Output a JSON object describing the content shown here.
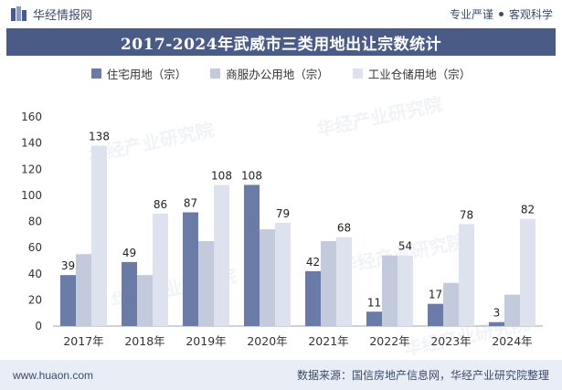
{
  "header": {
    "brand": "华经情报网",
    "slogan_left": "专业严谨",
    "slogan_right": "客观科学"
  },
  "watermark": "华经产业研究院",
  "colors": {
    "series1": "#6a7ba8",
    "series2": "#c3cadc",
    "series3": "#dde2ee",
    "title_bg": "#4a5b86",
    "footer_bg": "#e9edf5"
  },
  "footer": {
    "url": "www.huaon.com",
    "source": "数据来源：国信房地产信息网，华经产业研究院整理"
  },
  "chart_data": {
    "type": "bar",
    "title": "2017-2024年武威市三类用地出让宗数统计",
    "categories": [
      "2017年",
      "2018年",
      "2019年",
      "2020年",
      "2021年",
      "2022年",
      "2023年",
      "2024年"
    ],
    "series": [
      {
        "name": "住宅用地（宗）",
        "values": [
          39,
          49,
          87,
          108,
          42,
          11,
          17,
          3
        ]
      },
      {
        "name": "商服办公用地（宗）",
        "values": [
          55,
          39,
          65,
          74,
          65,
          54,
          33,
          24
        ]
      },
      {
        "name": "工业仓储用地（宗）",
        "values": [
          138,
          86,
          108,
          79,
          68,
          54,
          78,
          82
        ]
      }
    ],
    "value_labels": [
      [
        "39",
        "49",
        "87",
        "108",
        "42",
        "11",
        "17",
        "3"
      ],
      [],
      [
        "138",
        "86",
        "108",
        "79",
        "68",
        "54",
        "78",
        "82"
      ]
    ],
    "ylim": [
      0,
      160
    ],
    "yticks": [
      "0",
      "20",
      "40",
      "60",
      "80",
      "100",
      "120",
      "140",
      "160"
    ],
    "legend": "top-center",
    "grid": false
  }
}
